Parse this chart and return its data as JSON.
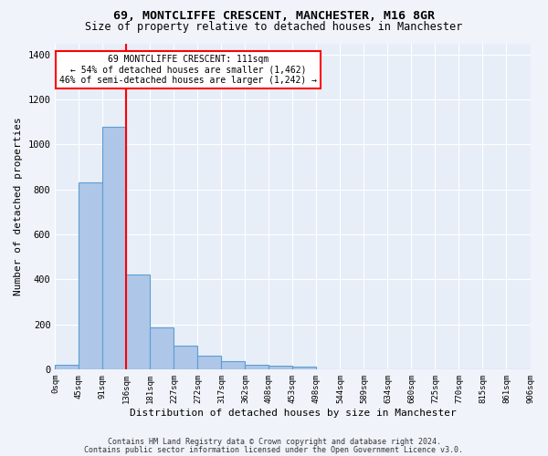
{
  "title1": "69, MONTCLIFFE CRESCENT, MANCHESTER, M16 8GR",
  "title2": "Size of property relative to detached houses in Manchester",
  "xlabel": "Distribution of detached houses by size in Manchester",
  "ylabel": "Number of detached properties",
  "bin_labels": [
    "0sqm",
    "45sqm",
    "91sqm",
    "136sqm",
    "181sqm",
    "227sqm",
    "272sqm",
    "317sqm",
    "362sqm",
    "408sqm",
    "453sqm",
    "498sqm",
    "544sqm",
    "589sqm",
    "634sqm",
    "680sqm",
    "725sqm",
    "770sqm",
    "815sqm",
    "861sqm",
    "906sqm"
  ],
  "bar_values": [
    20,
    830,
    1080,
    420,
    185,
    105,
    60,
    35,
    20,
    15,
    10,
    0,
    0,
    0,
    0,
    0,
    0,
    0,
    0,
    0
  ],
  "bar_color": "#aec6e8",
  "bar_edge_color": "#5a9fd4",
  "vline_x": 3.0,
  "vline_color": "red",
  "ylim": [
    0,
    1450
  ],
  "yticks": [
    0,
    200,
    400,
    600,
    800,
    1000,
    1200,
    1400
  ],
  "annotation_lines": [
    "69 MONTCLIFFE CRESCENT: 111sqm",
    "← 54% of detached houses are smaller (1,462)",
    "46% of semi-detached houses are larger (1,242) →"
  ],
  "annotation_box_color": "white",
  "annotation_box_edge": "red",
  "footer1": "Contains HM Land Registry data © Crown copyright and database right 2024.",
  "footer2": "Contains public sector information licensed under the Open Government Licence v3.0.",
  "bg_color": "#f0f4fa",
  "plot_bg_color": "#e8eef8",
  "title1_fontsize": 9.5,
  "title2_fontsize": 8.5,
  "ylabel_fontsize": 8,
  "xlabel_fontsize": 8,
  "tick_fontsize": 6.5,
  "ytick_fontsize": 7.5,
  "ann_fontsize": 7,
  "footer_fontsize": 6
}
